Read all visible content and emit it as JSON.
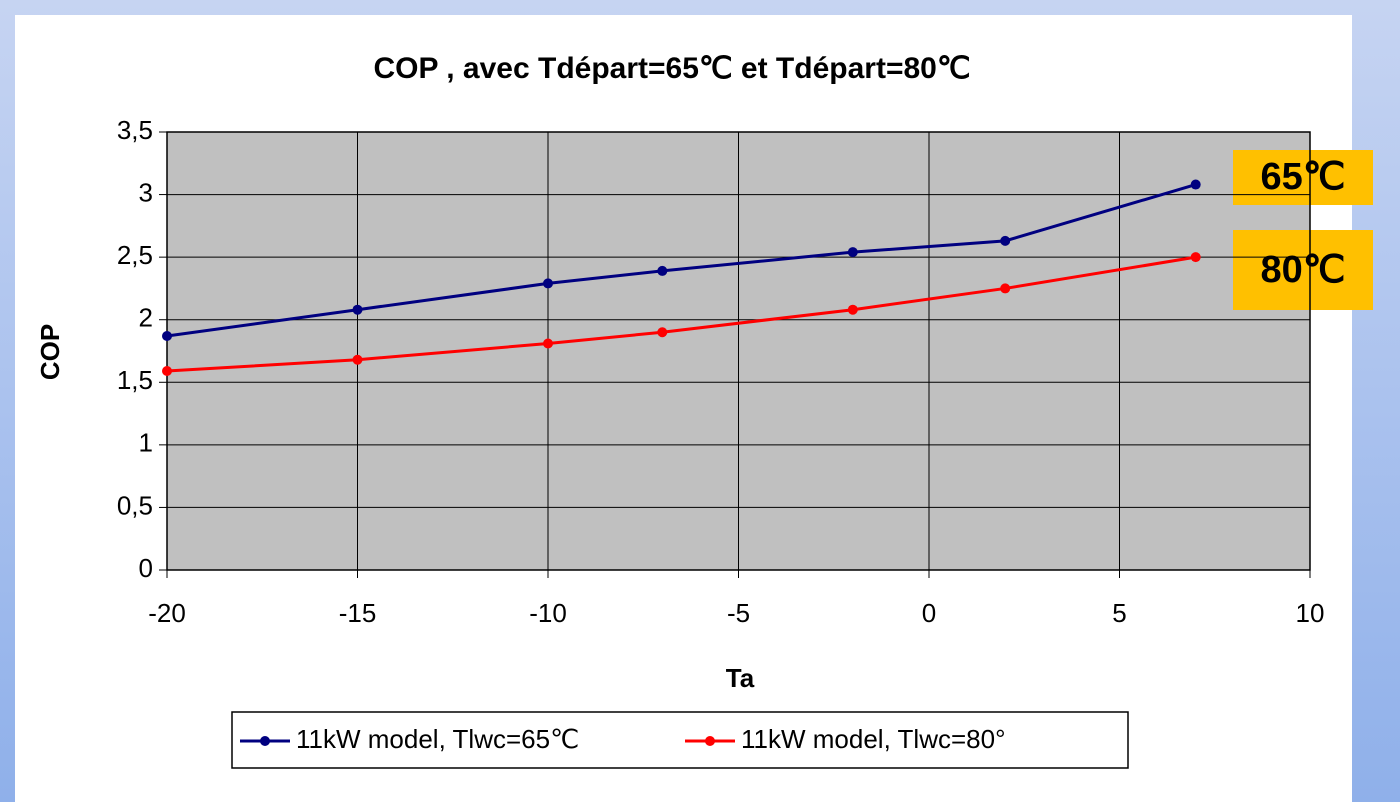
{
  "chart_data": {
    "type": "line",
    "title": "COP , avec Tdépart=65℃ et Tdépart=80℃",
    "x_label": "Ta",
    "y_label": "COP",
    "x": [
      -20,
      -15,
      -10,
      -7,
      -2,
      2,
      7
    ],
    "series": [
      {
        "name": "11kW model, Tlwc=65℃",
        "color": "#000080",
        "values": [
          1.87,
          2.08,
          2.29,
          2.39,
          2.54,
          2.63,
          3.08
        ]
      },
      {
        "name": "11kW model, Tlwc=80°",
        "color": "#ff0000",
        "values": [
          1.59,
          1.68,
          1.81,
          1.9,
          2.08,
          2.25,
          2.5
        ]
      }
    ],
    "xlim": [
      -20,
      10
    ],
    "xticks": [
      -20,
      -15,
      -10,
      -5,
      0,
      5,
      10
    ],
    "ylim": [
      0,
      3.5
    ],
    "yticks": [
      0,
      {
        "value": 0.5,
        "label": "0,5"
      },
      1,
      {
        "value": 1.5,
        "label": "1,5"
      },
      2,
      {
        "value": 2.5,
        "label": "2,5"
      },
      3,
      {
        "value": 3.5,
        "label": "3,5"
      }
    ],
    "grid": true,
    "legend": "bottom",
    "annotations": [
      "65℃",
      "80℃"
    ]
  }
}
